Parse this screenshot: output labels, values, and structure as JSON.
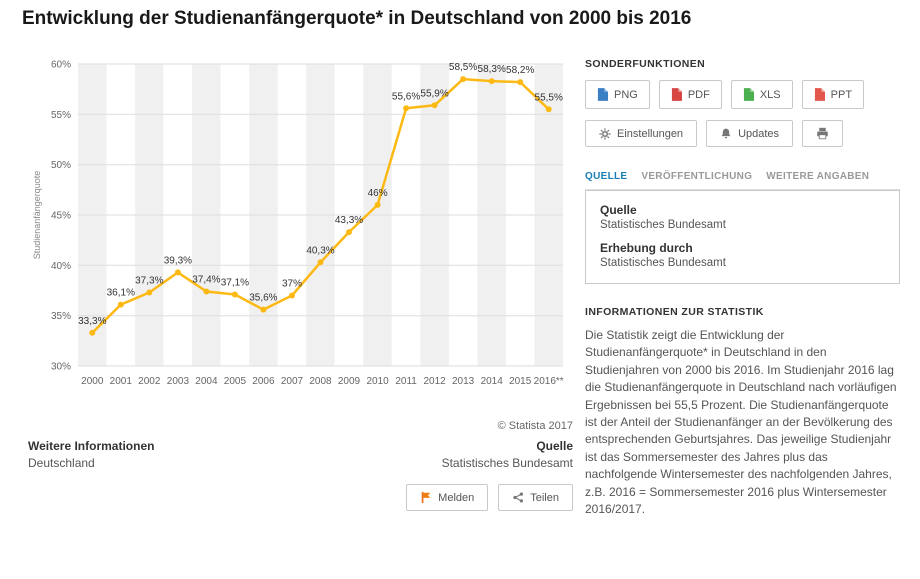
{
  "page": {
    "title": "Entwicklung der Studienanfängerquote* in Deutschland von 2000 bis 2016"
  },
  "chart_data": {
    "type": "line",
    "categories": [
      "2000",
      "2001",
      "2002",
      "2003",
      "2004",
      "2005",
      "2006",
      "2007",
      "2008",
      "2009",
      "2010",
      "2011",
      "2012",
      "2013",
      "2014",
      "2015",
      "2016**"
    ],
    "values": [
      33.3,
      36.1,
      37.3,
      39.3,
      37.4,
      37.1,
      35.6,
      37,
      40.3,
      43.3,
      46,
      55.6,
      55.9,
      58.5,
      58.3,
      58.2,
      55.5
    ],
    "labels": [
      "33,3%",
      "36,1%",
      "37,3%",
      "39,3%",
      "37,4%",
      "37,1%",
      "35,6%",
      "37%",
      "40,3%",
      "43,3%",
      "46%",
      "55,6%",
      "55,9%",
      "58,5%",
      "58,3%",
      "58,2%",
      "55,5%"
    ],
    "title": "Entwicklung der Studienanfängerquote* in Deutschland von 2000 bis 2016",
    "xlabel": "",
    "ylabel": "Studienanfängerquote",
    "ylim": [
      30,
      60
    ],
    "yticks": [
      "30%",
      "35%",
      "40%",
      "45%",
      "50%",
      "55%",
      "60%"
    ],
    "grid": "horizontal",
    "legend": "none"
  },
  "colors": {
    "line": "#fdb913",
    "tab_active": "#1a7db6",
    "flag": "#f07f13",
    "png_icon": "#3b7fc4",
    "pdf_icon": "#d64541",
    "xls_icon": "#4caf50",
    "ppt_icon": "#e2574c"
  },
  "chart_footer": {
    "copyright": "© Statista 2017",
    "more_info_label": "Weitere Informationen",
    "more_info_value": "Deutschland",
    "source_label": "Quelle",
    "source_value": "Statistisches Bundesamt",
    "report_button": "Melden",
    "share_button": "Teilen"
  },
  "sidebar": {
    "functions_heading": "SONDERFUNKTIONEN",
    "export_buttons": [
      {
        "label": "PNG",
        "icon": "png-file-icon",
        "color": "#3b7fc4"
      },
      {
        "label": "PDF",
        "icon": "pdf-file-icon",
        "color": "#d64541"
      },
      {
        "label": "XLS",
        "icon": "xls-file-icon",
        "color": "#4caf50"
      },
      {
        "label": "PPT",
        "icon": "ppt-file-icon",
        "color": "#e2574c"
      }
    ],
    "settings_button": "Einstellungen",
    "updates_button": "Updates",
    "tabs": [
      {
        "label": "QUELLE",
        "active": true
      },
      {
        "label": "VERÖFFENTLICHUNG",
        "active": false
      },
      {
        "label": "WEITERE ANGABEN",
        "active": false
      }
    ],
    "source_box": {
      "quelle_label": "Quelle",
      "quelle_value": "Statistisches Bundesamt",
      "erhebung_label": "Erhebung durch",
      "erhebung_value": "Statistisches Bundesamt"
    },
    "info_heading": "INFORMATIONEN ZUR STATISTIK",
    "info_text": "Die Statistik zeigt die Entwicklung der Studienanfängerquote* in Deutschland in den Studienjahren von 2000 bis 2016. Im Studienjahr 2016 lag die Studienanfängerquote in Deutschland nach vorläufigen Ergebnissen bei 55,5 Prozent. Die Studienanfängerquote ist der Anteil der Studienanfänger an der Bevölkerung des entsprechenden Geburtsjahres. Das jeweilige Studienjahr ist das Sommersemester des Jahres plus das nachfolgende Wintersemester des nachfolgenden Jahres, z.B. 2016 = Sommersemester 2016 plus Wintersemester 2016/2017."
  }
}
